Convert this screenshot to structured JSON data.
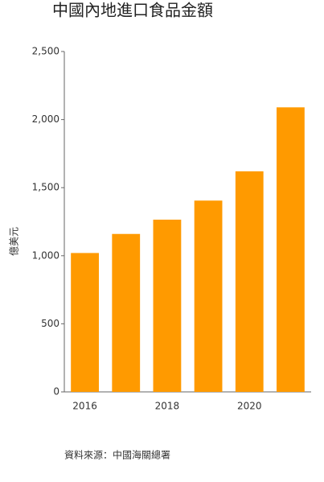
{
  "chart_data": {
    "type": "bar",
    "title": "中國內地進口食品金額",
    "y_label": "億美元",
    "source": "資料來源：中國海關總署",
    "categories": [
      "2016",
      null,
      "2018",
      null,
      "2020",
      null
    ],
    "values": [
      1020,
      1160,
      1265,
      1405,
      1620,
      2090
    ],
    "color": "#ff9a00",
    "ylim": [
      0,
      2500
    ],
    "yticks": [
      0,
      500,
      {
        "value": 1000,
        "label": "1,000"
      },
      {
        "value": 1500,
        "label": "1,500"
      },
      {
        "value": 2000,
        "label": "2,000"
      },
      {
        "value": 2500,
        "label": "2,500"
      }
    ],
    "grid": false
  }
}
